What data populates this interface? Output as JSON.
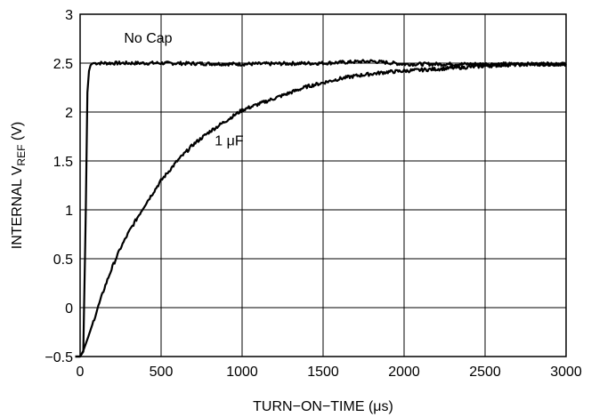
{
  "chart_data": {
    "type": "line",
    "title": "",
    "xlabel": "TURN−ON−TIME (μs)",
    "ylabel_main": "INTERNAL V",
    "ylabel_sub": "REF",
    "ylabel_tail": " (V)",
    "xlim": [
      0,
      3000
    ],
    "ylim": [
      -0.5,
      3
    ],
    "x_ticks": [
      0,
      500,
      1000,
      1500,
      2000,
      2500,
      3000
    ],
    "y_ticks": [
      -0.5,
      0,
      0.5,
      1,
      1.5,
      2,
      2.5,
      3
    ],
    "x_tick_labels": [
      "0",
      "500",
      "1000",
      "1500",
      "2000",
      "2500",
      "3000"
    ],
    "y_tick_labels": [
      "−0.5",
      "0",
      "0.5",
      "1",
      "1.5",
      "2",
      "2.5",
      "3"
    ],
    "grid": true,
    "legend": "none",
    "line_color": "#000000",
    "series": [
      {
        "name": "No Cap",
        "x": [
          -30,
          0,
          20,
          35,
          45,
          55,
          65,
          80,
          100,
          200,
          500,
          1000,
          1500,
          1800,
          2000,
          2500,
          3000
        ],
        "y": [
          -0.5,
          -0.5,
          -0.45,
          1.0,
          2.2,
          2.42,
          2.48,
          2.5,
          2.5,
          2.5,
          2.5,
          2.49,
          2.5,
          2.52,
          2.49,
          2.49,
          2.49
        ]
      },
      {
        "name": "1 μF",
        "x": [
          -30,
          0,
          20,
          50,
          100,
          150,
          200,
          250,
          300,
          400,
          500,
          600,
          700,
          800,
          900,
          1000,
          1100,
          1200,
          1300,
          1400,
          1500,
          1600,
          1700,
          1800,
          1900,
          2000,
          2200,
          2400,
          2600,
          2800,
          3000
        ],
        "y": [
          -0.5,
          -0.5,
          -0.44,
          -0.3,
          -0.05,
          0.2,
          0.42,
          0.61,
          0.77,
          1.05,
          1.3,
          1.5,
          1.67,
          1.8,
          1.91,
          2.02,
          2.08,
          2.14,
          2.2,
          2.26,
          2.3,
          2.34,
          2.37,
          2.39,
          2.41,
          2.42,
          2.44,
          2.46,
          2.48,
          2.49,
          2.49
        ]
      }
    ],
    "annotations": [
      {
        "text": "No Cap",
        "x": 420,
        "y": 2.71
      },
      {
        "text": "1 μF",
        "x": 920,
        "y": 1.66
      }
    ]
  }
}
